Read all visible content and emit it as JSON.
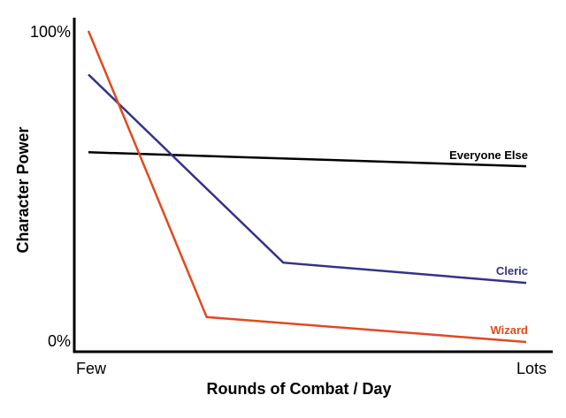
{
  "chart_data": {
    "type": "line",
    "title": "",
    "xlabel": "Rounds of Combat / Day",
    "ylabel": "Character Power",
    "x_ticks": [
      "Few",
      "Lots"
    ],
    "y_ticks": [
      "100%",
      "0%"
    ],
    "xlim": [
      0,
      100
    ],
    "ylim": [
      0,
      100
    ],
    "grid": false,
    "legend": "inline labels at right end of each line",
    "series": [
      {
        "name": "Everyone Else",
        "color": "#000000",
        "points": [
          [
            0,
            61
          ],
          [
            100,
            56.5
          ]
        ]
      },
      {
        "name": "Cleric",
        "color": "#33338a",
        "points": [
          [
            0,
            86
          ],
          [
            44.5,
            25.5
          ],
          [
            100,
            19
          ]
        ]
      },
      {
        "name": "Wizard",
        "color": "#e04a1f",
        "points": [
          [
            0,
            100
          ],
          [
            27,
            8
          ],
          [
            100,
            0
          ]
        ]
      }
    ]
  }
}
